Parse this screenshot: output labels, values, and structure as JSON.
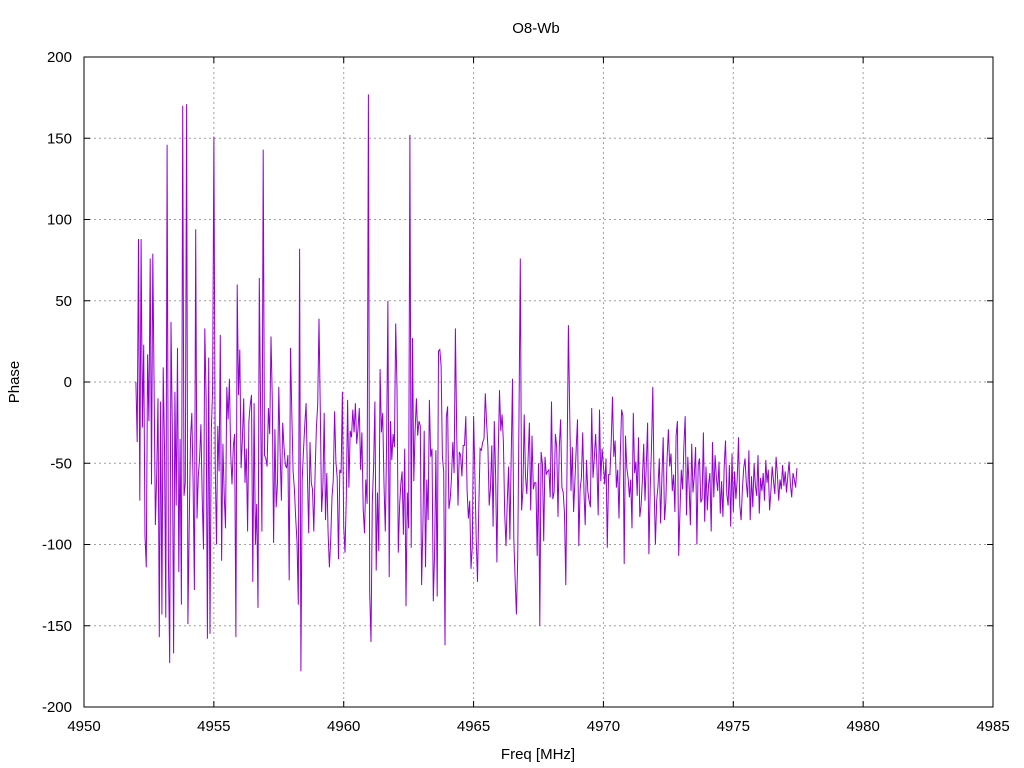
{
  "chart_data": {
    "type": "line",
    "title": "O8-Wb",
    "xlabel": "Freq [MHz]",
    "ylabel": "Phase",
    "xlim": [
      4950,
      4985
    ],
    "ylim": [
      -200,
      200
    ],
    "x_ticks": [
      4950,
      4955,
      4960,
      4965,
      4970,
      4975,
      4980,
      4985
    ],
    "y_ticks": [
      -200,
      -150,
      -100,
      -50,
      0,
      50,
      100,
      150,
      200
    ],
    "grid": true,
    "line_color": "#9400d3",
    "series": [
      {
        "x_start": 4952.0,
        "x_step": 0.05,
        "values": [
          0,
          -37,
          88,
          -73,
          88,
          -28,
          23,
          -95,
          -114,
          17,
          -24,
          76,
          -63,
          79,
          -3,
          -88,
          -57,
          -10,
          -157,
          -12,
          -143,
          9,
          -40,
          -145,
          146,
          -108,
          -173,
          37,
          -28,
          -167,
          -6,
          -76,
          21,
          -117,
          -35,
          -137,
          170,
          -70,
          -62,
          171,
          -149,
          -89,
          -35,
          -19,
          -62,
          -128,
          94,
          -84,
          -58,
          -47,
          -26,
          -71,
          -103,
          33,
          -10,
          -158,
          15,
          -155,
          -30,
          -5,
          151,
          -50,
          -100,
          -27,
          -55,
          29,
          -110,
          -38,
          -69,
          -90,
          -3,
          -23,
          2,
          -44,
          -63,
          -40,
          -32,
          -157,
          60,
          -8,
          20,
          -53,
          -35,
          -10,
          -62,
          -41,
          -92,
          -24,
          -14,
          -8,
          -123,
          -13,
          -100,
          -75,
          -139,
          64,
          -17,
          -92,
          143,
          -45,
          -47,
          -52,
          -16,
          -32,
          28,
          -11,
          -99,
          -29,
          -77,
          -62,
          -3,
          -43,
          -73,
          -25,
          -40,
          -51,
          -53,
          -45,
          -122,
          21,
          -19,
          -55,
          -66,
          -84,
          -98,
          -137,
          82,
          -178,
          -60,
          -42,
          -26,
          -13,
          -57,
          -93,
          -37,
          -62,
          -66,
          -92,
          -56,
          -28,
          -14,
          39,
          -18,
          -80,
          -64,
          -19,
          -85,
          -56,
          -93,
          -114,
          -97,
          -71,
          -60,
          -18,
          -49,
          -59,
          -109,
          -54,
          -56,
          -6,
          -89,
          -105,
          -71,
          -11,
          -65,
          -30,
          -34,
          -17,
          -31,
          -13,
          -38,
          -29,
          -16,
          -54,
          -31,
          -78,
          -93,
          -60,
          -75,
          177,
          -130,
          -160,
          -74,
          -52,
          -12,
          -116,
          -68,
          -104,
          8,
          -31,
          -19,
          -63,
          -92,
          -38,
          50,
          -120,
          -24,
          -48,
          -32,
          -40,
          36,
          -4,
          -105,
          -76,
          -62,
          -55,
          -94,
          -41,
          -138,
          -68,
          -90,
          152,
          -102,
          27,
          -61,
          -30,
          -10,
          -33,
          -24,
          -27,
          -125,
          -89,
          -30,
          -114,
          -60,
          -85,
          -11,
          -46,
          -41,
          -135,
          -105,
          -42,
          -132,
          19,
          20,
          10,
          -46,
          -55,
          -162,
          -22,
          -15,
          -78,
          -72,
          -59,
          -37,
          -56,
          33,
          -31,
          -76,
          -43,
          -45,
          -58,
          -39,
          -39,
          -21,
          -67,
          -84,
          -73,
          -115,
          -101,
          -21,
          -57,
          -96,
          -123,
          -77,
          -41,
          -42,
          -37,
          -35,
          -7,
          -25,
          -40,
          -76,
          -65,
          -39,
          -89,
          -24,
          -57,
          -111,
          -46,
          -5,
          -30,
          -20,
          -37,
          -81,
          -101,
          -73,
          -52,
          -97,
          -46,
          2,
          -96,
          -121,
          -143,
          -109,
          -20,
          76,
          -79,
          -67,
          -20,
          -58,
          -69,
          -47,
          -25,
          -79,
          -33,
          -66,
          -62,
          -62,
          -107,
          -50,
          -150,
          -43,
          -50,
          -98,
          -46,
          -57,
          -55,
          -54,
          -71,
          -12,
          -72,
          -68,
          -32,
          -40,
          -83,
          -40,
          -23,
          -65,
          -68,
          -81,
          -125,
          -48,
          35,
          -19,
          -67,
          -40,
          -80,
          -61,
          -41,
          -23,
          -101,
          -66,
          -59,
          -31,
          -68,
          -88,
          -48,
          -67,
          -73,
          -77,
          -16,
          -59,
          -47,
          -32,
          -51,
          -82,
          -17,
          -61,
          -41,
          -51,
          -63,
          -47,
          -102,
          -57,
          -57,
          -37,
          -9,
          -46,
          -36,
          -65,
          -54,
          -84,
          -45,
          -17,
          -21,
          -112,
          -33,
          -53,
          -59,
          -71,
          -60,
          -90,
          -19,
          -56,
          -49,
          -70,
          -34,
          -83,
          -76,
          -60,
          -38,
          -73,
          -51,
          -25,
          -106,
          -66,
          -40,
          -3,
          -64,
          -100,
          -73,
          -64,
          -47,
          -87,
          -59,
          -34,
          -85,
          -74,
          -47,
          -29,
          -52,
          -44,
          -67,
          -57,
          -80,
          -33,
          -24,
          -107,
          -79,
          -54,
          -66,
          -39,
          -21,
          -82,
          -46,
          -64,
          -88,
          -38,
          -68,
          -58,
          -40,
          -100,
          -51,
          -47,
          -74,
          -72,
          -31,
          -86,
          -52,
          -79,
          -63,
          -56,
          -92,
          -37,
          -71,
          -45,
          -59,
          -67,
          -49,
          -81,
          -61,
          -83,
          -52,
          -36,
          -69,
          -76,
          -51,
          -89,
          -44,
          -80,
          -55,
          -72,
          -60,
          -34,
          -76,
          -85,
          -66,
          -53,
          -47,
          -62,
          -71,
          -42,
          -85,
          -58,
          -77,
          -50,
          -64,
          -70,
          -45,
          -81,
          -59,
          -67,
          -56,
          -73,
          -48,
          -62,
          -54,
          -79,
          -67,
          -52,
          -61,
          -69,
          -46,
          -57,
          -73,
          -60,
          -66,
          -51,
          -64,
          -55,
          -68,
          -58,
          -49,
          -63,
          -71,
          -56,
          -60,
          -65,
          -53
        ]
      }
    ]
  }
}
